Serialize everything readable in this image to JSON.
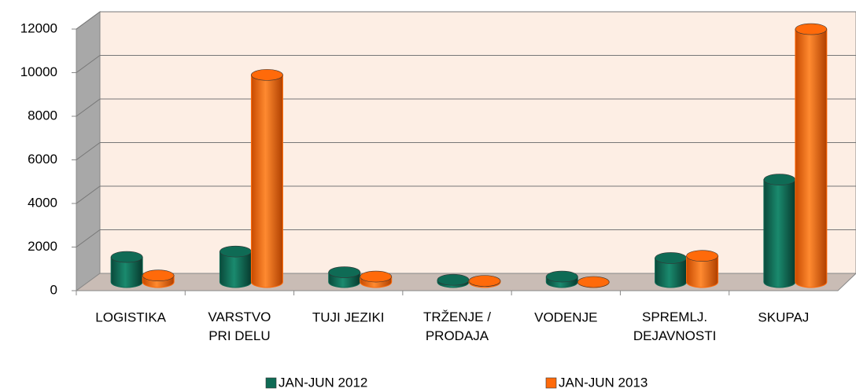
{
  "chart_data": {
    "type": "bar3d",
    "categories": [
      "LOGISTIKA",
      "VARSTVO\nPRI DELU",
      "TUJI JEZIKI",
      "TRŽENJE /\nPRODAJA",
      "VODENJE",
      "SPREMLJ.\nDEJAVNOSTI",
      "SKUPAJ"
    ],
    "series": [
      {
        "name": "JAN-JUN 2012",
        "color": "#0f6b55",
        "values": [
          1150,
          1400,
          450,
          100,
          250,
          1100,
          4700
        ]
      },
      {
        "name": "JAN-JUN 2013",
        "color": "#ff6a0a",
        "values": [
          300,
          9500,
          250,
          50,
          0,
          1200,
          11600
        ]
      }
    ],
    "ylim": [
      0,
      12000
    ],
    "yticks": [
      0,
      2000,
      4000,
      6000,
      8000,
      10000,
      12000
    ],
    "grid": true
  }
}
